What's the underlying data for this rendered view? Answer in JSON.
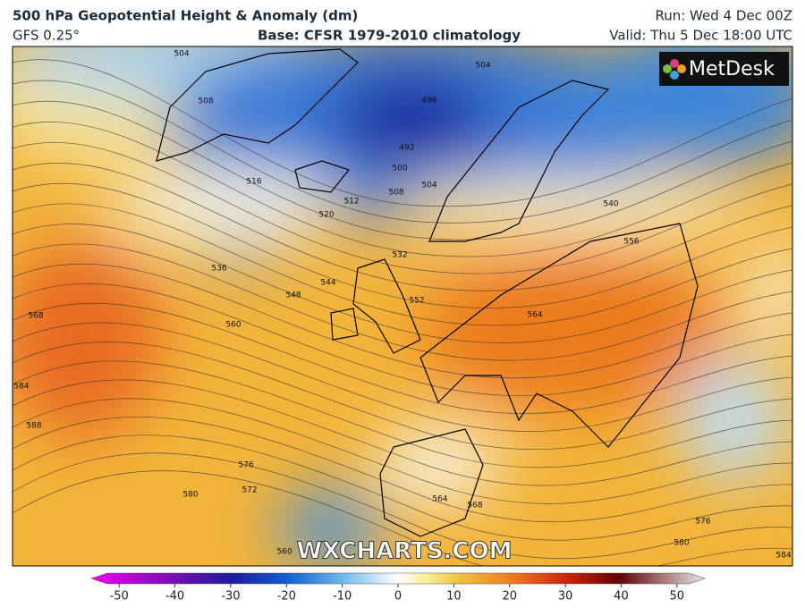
{
  "header": {
    "title": "500 hPa Geopotential Height & Anomaly (dm)",
    "model": "GFS 0.25°",
    "base": "Base: CFSR 1979-2010 climatology",
    "run": "Run: Wed 4 Dec 00Z",
    "valid": "Valid: Thu 5 Dec 18:00 UTC"
  },
  "map": {
    "logo": "MetDesk",
    "watermark": "WXCHARTS.COM",
    "contour_labels": [
      504,
      504,
      508,
      496,
      492,
      500,
      504,
      508,
      512,
      516,
      520,
      532,
      536,
      544,
      548,
      552,
      556,
      540,
      560,
      564,
      568,
      584,
      588,
      576,
      572,
      580,
      564,
      568,
      560,
      576,
      580,
      584
    ]
  },
  "colorbar": {
    "lim": [
      -55,
      55
    ],
    "ticks": [
      -50,
      -40,
      -30,
      -20,
      -10,
      0,
      10,
      20,
      30,
      40,
      50
    ]
  }
}
